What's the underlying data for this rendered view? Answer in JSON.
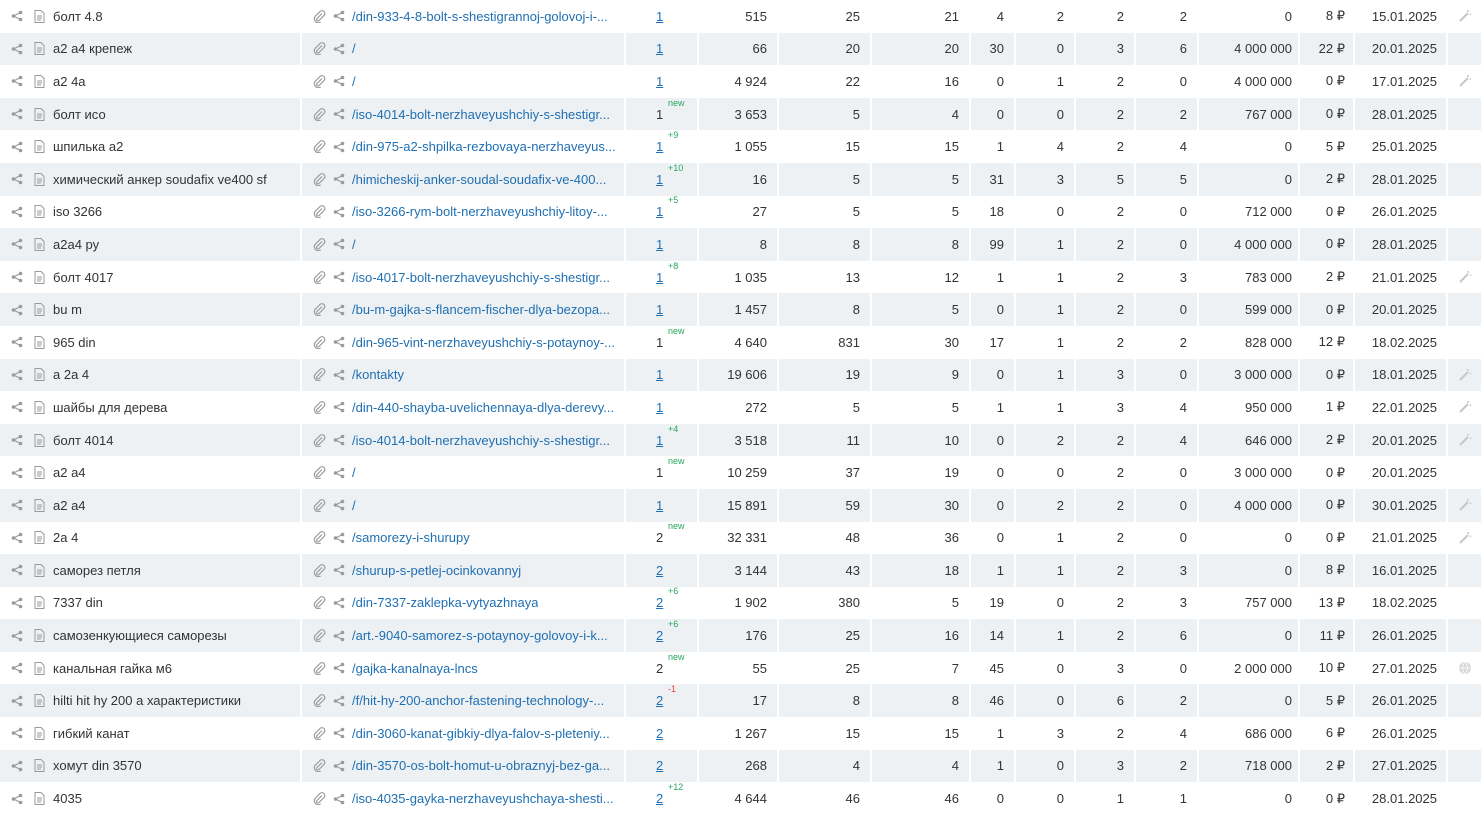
{
  "colors": {
    "link": "#1f6fb2",
    "positive": "#25a55a",
    "negative": "#e24040",
    "row_alt": "#eef1f4",
    "icon": "#999999"
  },
  "icons": {
    "share": "share-icon",
    "page": "page-icon",
    "attach": "paperclip-icon",
    "wand": "magic-wand-icon",
    "globe": "globe-icon"
  },
  "rows": [
    {
      "keyword": "болт 4.8",
      "url": "/din-933-4-8-bolt-s-shestigrannoj-golovoj-i-...",
      "pos": "1",
      "pos_link": true,
      "delta": "",
      "n1": "515",
      "n2": "25",
      "n3": "21",
      "n4": "4",
      "n5": "2",
      "n6": "2",
      "n7": "2",
      "n8": "0",
      "price": "8 ₽",
      "date": "15.01.2025",
      "tail": "wand"
    },
    {
      "keyword": "а2 а4 крепеж",
      "url": "/",
      "pos": "1",
      "pos_link": true,
      "delta": "",
      "n1": "66",
      "n2": "20",
      "n3": "20",
      "n4": "30",
      "n5": "0",
      "n6": "3",
      "n7": "6",
      "n8": "4 000 000",
      "price": "22 ₽",
      "date": "20.01.2025",
      "tail": ""
    },
    {
      "keyword": "а2 4а",
      "url": "/",
      "pos": "1",
      "pos_link": true,
      "delta": "",
      "n1": "4 924",
      "n2": "22",
      "n3": "16",
      "n4": "0",
      "n5": "1",
      "n6": "2",
      "n7": "0",
      "n8": "4 000 000",
      "price": "0 ₽",
      "date": "17.01.2025",
      "tail": "wand"
    },
    {
      "keyword": "болт исо",
      "url": "/iso-4014-bolt-nerzhaveyushchiy-s-shestigr...",
      "pos": "1",
      "pos_link": false,
      "delta": "new",
      "n1": "3 653",
      "n2": "5",
      "n3": "4",
      "n4": "0",
      "n5": "0",
      "n6": "2",
      "n7": "2",
      "n8": "767 000",
      "price": "0 ₽",
      "date": "28.01.2025",
      "tail": ""
    },
    {
      "keyword": "шпилька а2",
      "url": "/din-975-a2-shpilka-rezbovaya-nerzhaveyus...",
      "pos": "1",
      "pos_link": true,
      "delta": "+9",
      "n1": "1 055",
      "n2": "15",
      "n3": "15",
      "n4": "1",
      "n5": "4",
      "n6": "2",
      "n7": "4",
      "n8": "0",
      "price": "5 ₽",
      "date": "25.01.2025",
      "tail": ""
    },
    {
      "keyword": "химический анкер soudafix ve400 sf",
      "url": "/himicheskij-anker-soudal-soudafix-ve-400...",
      "pos": "1",
      "pos_link": true,
      "delta": "+10",
      "n1": "16",
      "n2": "5",
      "n3": "5",
      "n4": "31",
      "n5": "3",
      "n6": "5",
      "n7": "5",
      "n8": "0",
      "price": "2 ₽",
      "date": "28.01.2025",
      "tail": ""
    },
    {
      "keyword": "iso 3266",
      "url": "/iso-3266-rym-bolt-nerzhaveyushchiy-litoy-...",
      "pos": "1",
      "pos_link": true,
      "delta": "+5",
      "n1": "27",
      "n2": "5",
      "n3": "5",
      "n4": "18",
      "n5": "0",
      "n6": "2",
      "n7": "0",
      "n8": "712 000",
      "price": "0 ₽",
      "date": "26.01.2025",
      "tail": ""
    },
    {
      "keyword": "а2а4 ру",
      "url": "/",
      "pos": "1",
      "pos_link": true,
      "delta": "",
      "n1": "8",
      "n2": "8",
      "n3": "8",
      "n4": "99",
      "n5": "1",
      "n6": "2",
      "n7": "0",
      "n8": "4 000 000",
      "price": "0 ₽",
      "date": "28.01.2025",
      "tail": ""
    },
    {
      "keyword": "болт 4017",
      "url": "/iso-4017-bolt-nerzhaveyushchiy-s-shestigr...",
      "pos": "1",
      "pos_link": true,
      "delta": "+8",
      "n1": "1 035",
      "n2": "13",
      "n3": "12",
      "n4": "1",
      "n5": "1",
      "n6": "2",
      "n7": "3",
      "n8": "783 000",
      "price": "2 ₽",
      "date": "21.01.2025",
      "tail": "wand"
    },
    {
      "keyword": "bu m",
      "url": "/bu-m-gajka-s-flancem-fischer-dlya-bezopa...",
      "pos": "1",
      "pos_link": true,
      "delta": "",
      "n1": "1 457",
      "n2": "8",
      "n3": "5",
      "n4": "0",
      "n5": "1",
      "n6": "2",
      "n7": "0",
      "n8": "599 000",
      "price": "0 ₽",
      "date": "20.01.2025",
      "tail": ""
    },
    {
      "keyword": "965 din",
      "url": "/din-965-vint-nerzhaveyushchiy-s-potaynoy-...",
      "pos": "1",
      "pos_link": false,
      "delta": "new",
      "n1": "4 640",
      "n2": "831",
      "n3": "30",
      "n4": "17",
      "n5": "1",
      "n6": "2",
      "n7": "2",
      "n8": "828 000",
      "price": "12 ₽",
      "date": "18.02.2025",
      "tail": ""
    },
    {
      "keyword": "а 2а 4",
      "url": "/kontakty",
      "pos": "1",
      "pos_link": true,
      "delta": "",
      "n1": "19 606",
      "n2": "19",
      "n3": "9",
      "n4": "0",
      "n5": "1",
      "n6": "3",
      "n7": "0",
      "n8": "3 000 000",
      "price": "0 ₽",
      "date": "18.01.2025",
      "tail": "wand"
    },
    {
      "keyword": "шайбы для дерева",
      "url": "/din-440-shayba-uvelichennaya-dlya-derevy...",
      "pos": "1",
      "pos_link": true,
      "delta": "",
      "n1": "272",
      "n2": "5",
      "n3": "5",
      "n4": "1",
      "n5": "1",
      "n6": "3",
      "n7": "4",
      "n8": "950 000",
      "price": "1 ₽",
      "date": "22.01.2025",
      "tail": "wand"
    },
    {
      "keyword": "болт 4014",
      "url": "/iso-4014-bolt-nerzhaveyushchiy-s-shestigr...",
      "pos": "1",
      "pos_link": true,
      "delta": "+4",
      "n1": "3 518",
      "n2": "11",
      "n3": "10",
      "n4": "0",
      "n5": "2",
      "n6": "2",
      "n7": "4",
      "n8": "646 000",
      "price": "2 ₽",
      "date": "20.01.2025",
      "tail": "wand"
    },
    {
      "keyword": "а2 а4",
      "url": "/",
      "pos": "1",
      "pos_link": false,
      "delta": "new",
      "n1": "10 259",
      "n2": "37",
      "n3": "19",
      "n4": "0",
      "n5": "0",
      "n6": "2",
      "n7": "0",
      "n8": "3 000 000",
      "price": "0 ₽",
      "date": "20.01.2025",
      "tail": ""
    },
    {
      "keyword": "а2 а4",
      "url": "/",
      "pos": "1",
      "pos_link": true,
      "delta": "",
      "n1": "15 891",
      "n2": "59",
      "n3": "30",
      "n4": "0",
      "n5": "2",
      "n6": "2",
      "n7": "0",
      "n8": "4 000 000",
      "price": "0 ₽",
      "date": "30.01.2025",
      "tail": "wand"
    },
    {
      "keyword": "2а 4",
      "url": "/samorezy-i-shurupy",
      "pos": "2",
      "pos_link": false,
      "delta": "new",
      "n1": "32 331",
      "n2": "48",
      "n3": "36",
      "n4": "0",
      "n5": "1",
      "n6": "2",
      "n7": "0",
      "n8": "0",
      "price": "0 ₽",
      "date": "21.01.2025",
      "tail": "wand"
    },
    {
      "keyword": "саморез петля",
      "url": "/shurup-s-petlej-ocinkovannyj",
      "pos": "2",
      "pos_link": true,
      "delta": "",
      "n1": "3 144",
      "n2": "43",
      "n3": "18",
      "n4": "1",
      "n5": "1",
      "n6": "2",
      "n7": "3",
      "n8": "0",
      "price": "8 ₽",
      "date": "16.01.2025",
      "tail": ""
    },
    {
      "keyword": "7337 din",
      "url": "/din-7337-zaklepka-vytyazhnaya",
      "pos": "2",
      "pos_link": true,
      "delta": "+6",
      "n1": "1 902",
      "n2": "380",
      "n3": "5",
      "n4": "19",
      "n5": "0",
      "n6": "2",
      "n7": "3",
      "n8": "757 000",
      "price": "13 ₽",
      "date": "18.02.2025",
      "tail": ""
    },
    {
      "keyword": "самозенкующиеся саморезы",
      "url": "/art.-9040-samorez-s-potaynoy-golovoy-i-k...",
      "pos": "2",
      "pos_link": true,
      "delta": "+6",
      "n1": "176",
      "n2": "25",
      "n3": "16",
      "n4": "14",
      "n5": "1",
      "n6": "2",
      "n7": "6",
      "n8": "0",
      "price": "11 ₽",
      "date": "26.01.2025",
      "tail": ""
    },
    {
      "keyword": "канальная гайка м6",
      "url": "/gajka-kanalnaya-lncs",
      "pos": "2",
      "pos_link": false,
      "delta": "new",
      "n1": "55",
      "n2": "25",
      "n3": "7",
      "n4": "45",
      "n5": "0",
      "n6": "3",
      "n7": "0",
      "n8": "2 000 000",
      "price": "10 ₽",
      "date": "27.01.2025",
      "tail": "globe"
    },
    {
      "keyword": "hilti hit hy 200 a характеристики",
      "url": "/f/hit-hy-200-anchor-fastening-technology-...",
      "pos": "2",
      "pos_link": true,
      "delta": "-1",
      "n1": "17",
      "n2": "8",
      "n3": "8",
      "n4": "46",
      "n5": "0",
      "n6": "6",
      "n7": "2",
      "n8": "0",
      "price": "5 ₽",
      "date": "26.01.2025",
      "tail": ""
    },
    {
      "keyword": "гибкий канат",
      "url": "/din-3060-kanat-gibkiy-dlya-falov-s-pleteniy...",
      "pos": "2",
      "pos_link": true,
      "delta": "",
      "n1": "1 267",
      "n2": "15",
      "n3": "15",
      "n4": "1",
      "n5": "3",
      "n6": "2",
      "n7": "4",
      "n8": "686 000",
      "price": "6 ₽",
      "date": "26.01.2025",
      "tail": ""
    },
    {
      "keyword": "хомут din 3570",
      "url": "/din-3570-os-bolt-homut-u-obraznyj-bez-ga...",
      "pos": "2",
      "pos_link": true,
      "delta": "",
      "n1": "268",
      "n2": "4",
      "n3": "4",
      "n4": "1",
      "n5": "0",
      "n6": "3",
      "n7": "2",
      "n8": "718 000",
      "price": "2 ₽",
      "date": "27.01.2025",
      "tail": ""
    },
    {
      "keyword": "4035",
      "url": "/iso-4035-gayka-nerzhaveyushchaya-shesti...",
      "pos": "2",
      "pos_link": true,
      "delta": "+12",
      "n1": "4 644",
      "n2": "46",
      "n3": "46",
      "n4": "0",
      "n5": "0",
      "n6": "1",
      "n7": "1",
      "n8": "0",
      "price": "0 ₽",
      "date": "28.01.2025",
      "tail": ""
    }
  ]
}
